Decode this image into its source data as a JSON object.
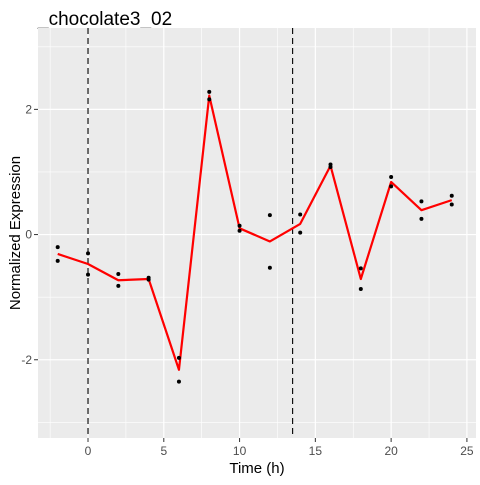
{
  "chart_data": {
    "type": "scatter",
    "title": "_chocolate3_02",
    "xlabel": "Time (h)",
    "ylabel": "Normalized Expression",
    "xlim": [
      -3.3,
      25.6
    ],
    "ylim": [
      -3.25,
      3.3
    ],
    "xticks": [
      0,
      5,
      10,
      15,
      20,
      25
    ],
    "yticks": [
      -2,
      0,
      2
    ],
    "xtick_labels": [
      "0",
      "5",
      "10",
      "15",
      "20",
      "25"
    ],
    "ytick_labels": [
      "-2",
      "0",
      "2"
    ],
    "grid": true,
    "legend": "none",
    "vlines": [
      0,
      13.5
    ],
    "series": [
      {
        "mode": "points",
        "color": "#000000",
        "x": [
          -2,
          -2,
          0,
          0,
          2,
          2,
          4,
          4,
          6,
          6,
          8,
          8,
          10,
          10,
          12,
          12,
          14,
          14,
          16,
          16,
          18,
          18,
          20,
          20,
          22,
          22,
          24,
          24
        ],
        "y": [
          -0.2,
          -0.42,
          -0.3,
          -0.64,
          -0.63,
          -0.82,
          -0.69,
          -0.72,
          -1.97,
          -2.35,
          2.28,
          2.16,
          0.14,
          0.06,
          0.31,
          -0.53,
          0.32,
          0.03,
          1.12,
          1.08,
          -0.54,
          -0.87,
          0.92,
          0.77,
          0.53,
          0.25,
          0.62,
          0.48
        ]
      },
      {
        "mode": "line",
        "color": "#ff0000",
        "x": [
          -2,
          0,
          2,
          4,
          6,
          8,
          10,
          12,
          14,
          16,
          18,
          20,
          22,
          24
        ],
        "y": [
          -0.31,
          -0.47,
          -0.73,
          -0.71,
          -2.16,
          2.22,
          0.1,
          -0.11,
          0.17,
          1.1,
          -0.71,
          0.84,
          0.39,
          0.55
        ]
      }
    ]
  }
}
